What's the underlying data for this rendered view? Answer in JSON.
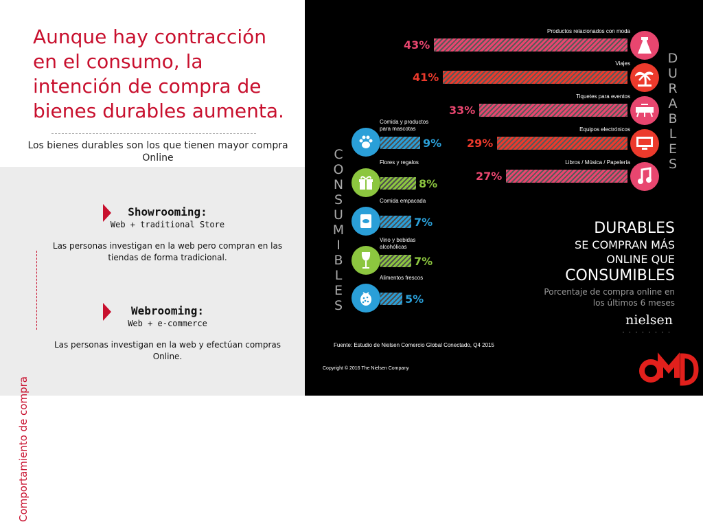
{
  "left": {
    "headline": "Aunque hay contracción en el consumo, la intención de compra de bienes durables aumenta.",
    "subtitle": "Los bienes durables son los que tienen mayor compra Online",
    "vertical_label": "Comportamiento de compra",
    "showrooming": {
      "title": "Showrooming:",
      "subtitle": "Web + traditional Store",
      "description": "Las personas investigan en la web pero compran en las tiendas de forma tradicional."
    },
    "webrooming": {
      "title": "Webrooming:",
      "subtitle": "Web + e-commerce",
      "description": "Las personas investigan en la web y efectúan compras Online."
    }
  },
  "infographic": {
    "durables_vertical": "DURABLES",
    "consumibles_vertical": "CONSUMIBLES",
    "durables": [
      {
        "label": "Productos relacionados con moda",
        "value": "43%",
        "pct": 43,
        "color": "#e8466f",
        "icon": "dress-icon"
      },
      {
        "label": "Viajes",
        "value": "41%",
        "pct": 41,
        "color": "#ec3a2c",
        "icon": "palm-tree-icon"
      },
      {
        "label": "Tiquetes para eventos",
        "value": "33%",
        "pct": 33,
        "color": "#e8466f",
        "icon": "tickets-icon"
      },
      {
        "label": "Equipos electrónicos",
        "value": "29%",
        "pct": 29,
        "color": "#ec3a2c",
        "icon": "monitor-icon"
      },
      {
        "label": "Libros / Música / Papelería",
        "value": "27%",
        "pct": 27,
        "color": "#e8466f",
        "icon": "music-note-icon"
      }
    ],
    "consumibles": [
      {
        "label": "Comida y productos para mascotas",
        "value": "9%",
        "pct": 9,
        "color": "#2a9fd8",
        "icon": "paw-icon"
      },
      {
        "label": "Flores y regalos",
        "value": "8%",
        "pct": 8,
        "color": "#8cc63f",
        "icon": "gift-icon"
      },
      {
        "label": "Comida empacada",
        "value": "7%",
        "pct": 7,
        "color": "#2a9fd8",
        "icon": "can-icon"
      },
      {
        "label": "Vino y bebidas alcohólicas",
        "value": "7%",
        "pct": 7,
        "color": "#8cc63f",
        "icon": "wine-glass-icon"
      },
      {
        "label": "Alimentos frescos",
        "value": "5%",
        "pct": 5,
        "color": "#2a9fd8",
        "icon": "berry-icon"
      }
    ],
    "headline_l1": "DURABLES",
    "headline_l2": "SE COMPRAN MÁS",
    "headline_l3": "ONLINE QUE",
    "headline_l4": "CONSUMIBLES",
    "caption_l1": "Porcentaje de compra online en",
    "caption_l2": "los últimos 6 meses",
    "brand": "nielsen",
    "source": "Fuente: Estudio de Nielsen Comercio Global Conectado, Q4 2015",
    "copyright": "Copyright © 2016 The Nielsen Company"
  },
  "logo": {
    "text": "OMD",
    "color": "#e1201c"
  }
}
